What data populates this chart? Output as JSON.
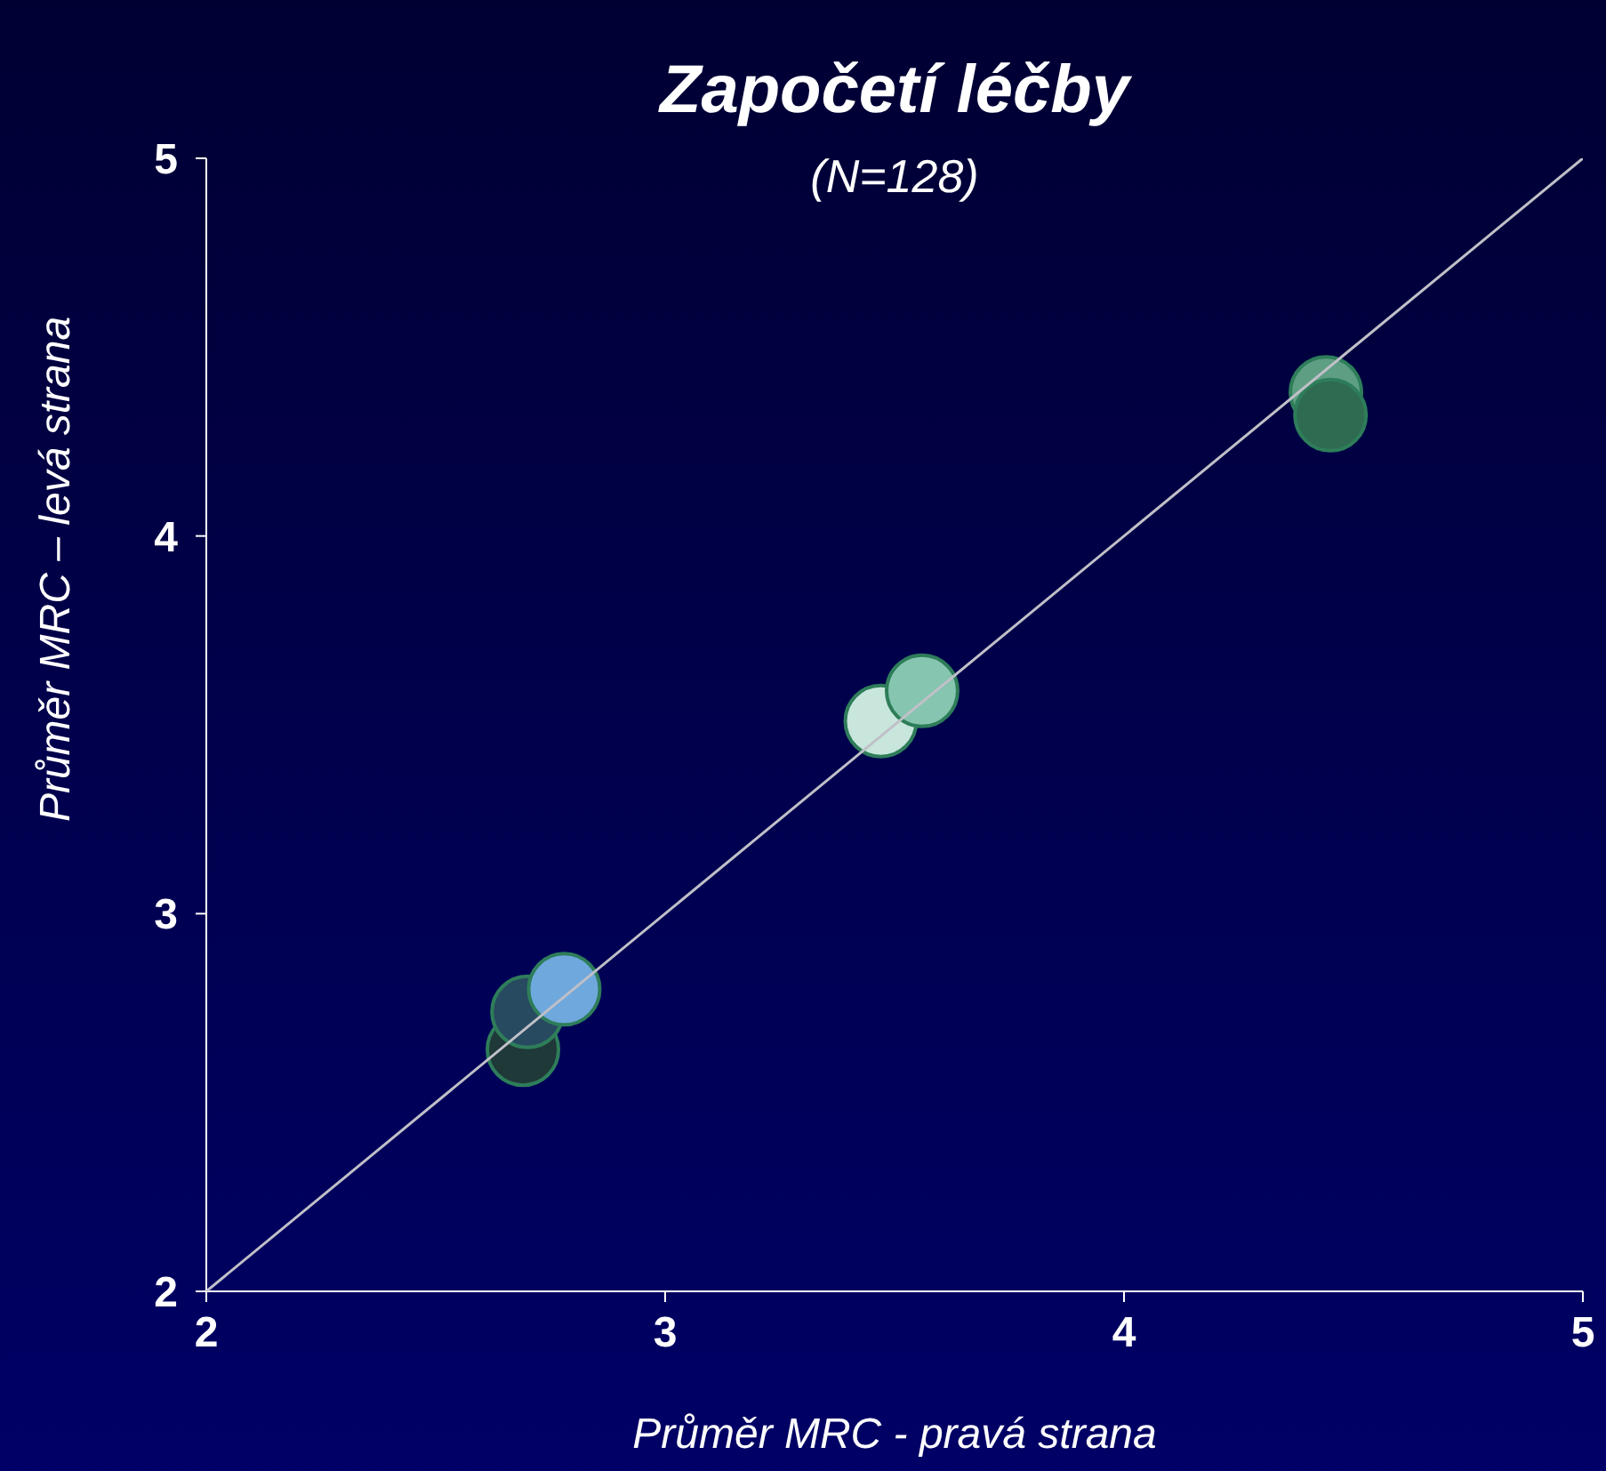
{
  "chart_data": {
    "type": "scatter",
    "title": "Započetí léčby",
    "subtitle": "(N=128)",
    "xlabel": "Průměr MRC - pravá strana",
    "ylabel": "Průměr MRC – levá strana",
    "xlim": [
      2,
      5
    ],
    "ylim": [
      2,
      5
    ],
    "xticks": [
      2,
      3,
      4,
      5
    ],
    "yticks": [
      2,
      3,
      4,
      5
    ],
    "grid": false,
    "legend": false,
    "marker": "circle",
    "series": [
      {
        "x": [
          2.69,
          2.7,
          2.78,
          null,
          3.47,
          3.56,
          4.44,
          4.45
        ],
        "values": [
          2.64,
          2.74,
          2.8,
          null,
          3.51,
          3.59,
          4.38,
          4.32
        ],
        "colors": [
          "#1f3838",
          "#274a60",
          "#6fa8dc",
          "#5b9bd5",
          "#c8e6dc",
          "#86c5b0",
          "#5e9e82",
          "#2f6b50"
        ]
      },
      {
        "type": "line",
        "x": [
          2,
          5
        ],
        "values": [
          2,
          5
        ],
        "color": "#c0c0c8",
        "marker": "none"
      }
    ]
  }
}
